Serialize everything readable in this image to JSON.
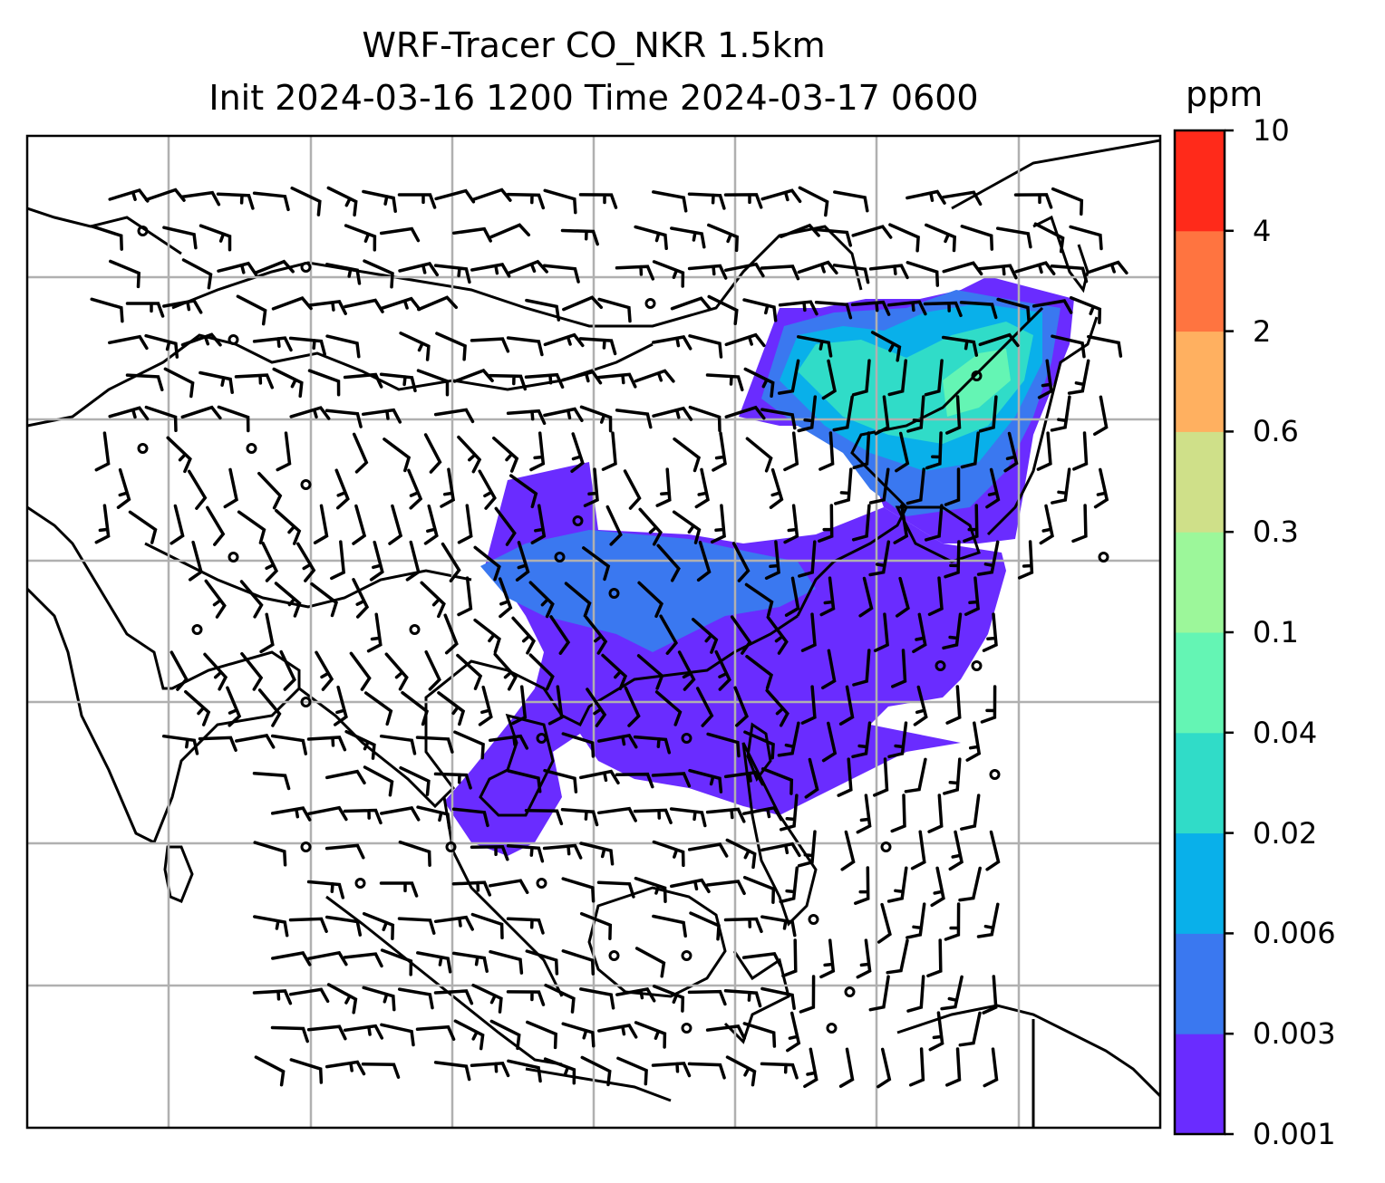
{
  "title": {
    "line1": "WRF-Tracer CO_NKR 1.5km",
    "line2": "Init 2024-03-16 1200 Time 2024-03-17 0600"
  },
  "colorbar": {
    "unit": "ppm",
    "levels": [
      "0.001",
      "0.003",
      "0.006",
      "0.02",
      "0.04",
      "0.1",
      "0.3",
      "0.6",
      "2",
      "4",
      "10"
    ],
    "colors": [
      "#6a2cff",
      "#3a78f0",
      "#09b0ea",
      "#30dcc8",
      "#64f5b4",
      "#9cf79a",
      "#cfe089",
      "#ffb060",
      "#ff7440",
      "#ff2a1a"
    ]
  },
  "map": {
    "gridlines": true,
    "coastline_color": "#000000",
    "grid_color": "#b0b0b0",
    "wind_barbs": true
  }
}
